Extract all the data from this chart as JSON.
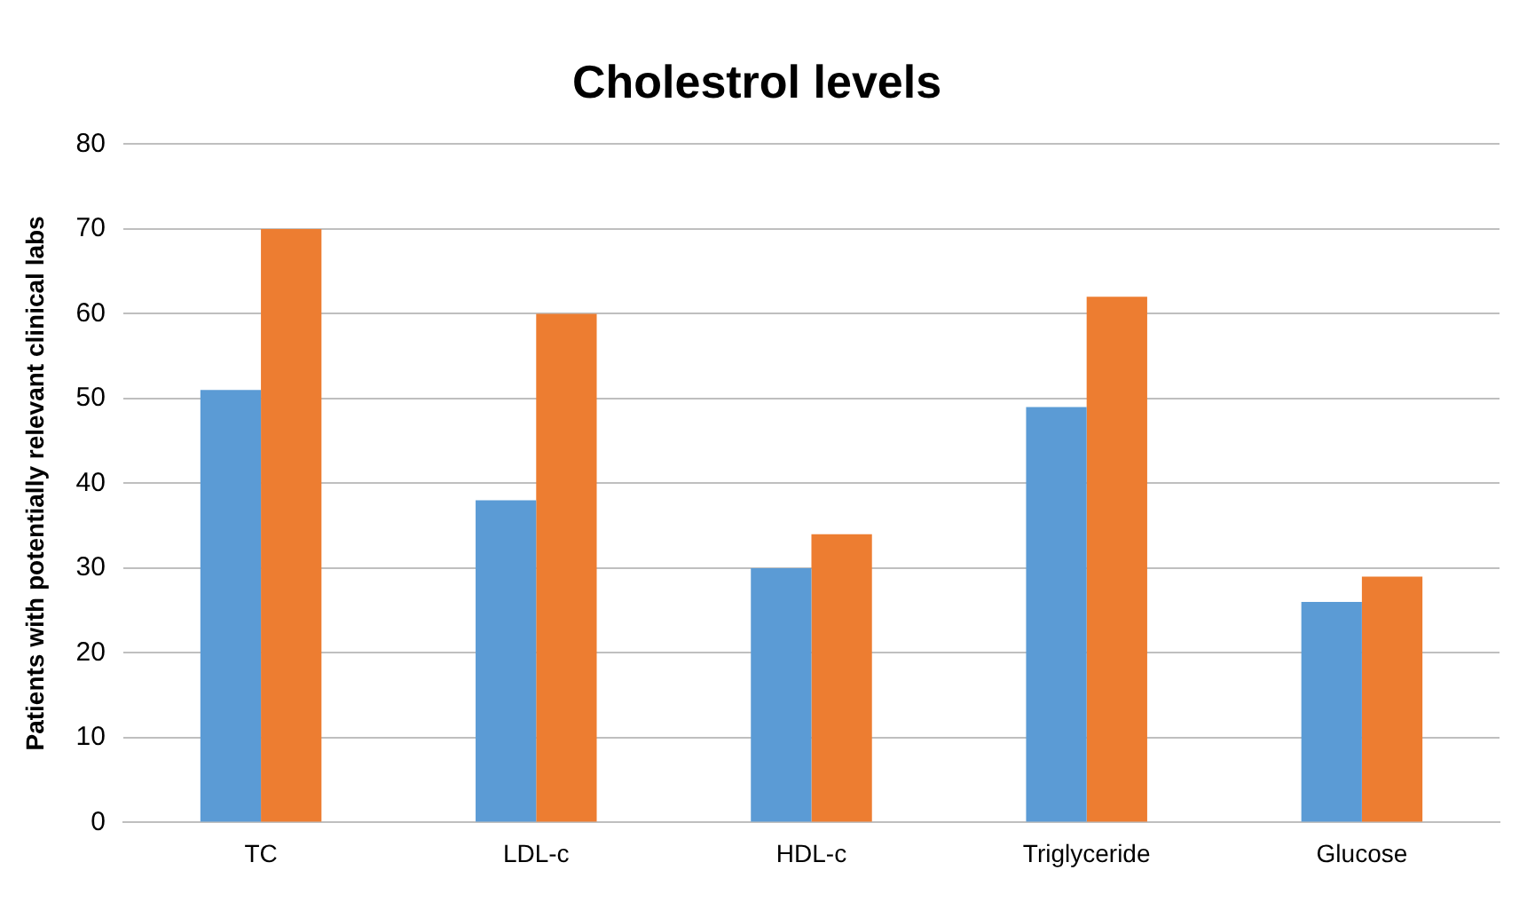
{
  "chart_data": {
    "type": "bar",
    "title": "Cholestrol levels",
    "ylabel": "Patients with potentially relevant clinical labs",
    "categories": [
      "TC",
      "LDL-c",
      "HDL-c",
      "Triglyceride",
      "Glucose"
    ],
    "series": [
      {
        "color": "#5b9bd5",
        "values": [
          51,
          38,
          30,
          49,
          26
        ]
      },
      {
        "color": "#ed7d31",
        "values": [
          70,
          60,
          34,
          62,
          29
        ]
      }
    ],
    "ylim": [
      0,
      80
    ],
    "yticks": [
      0,
      10,
      20,
      30,
      40,
      50,
      60,
      70,
      80
    ],
    "grid": "y",
    "legend": false
  }
}
